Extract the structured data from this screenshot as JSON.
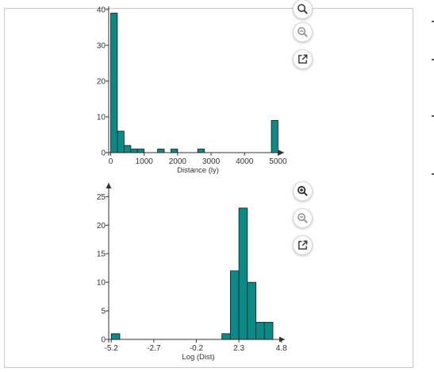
{
  "chart_data": [
    {
      "type": "histogram",
      "xlabel": "Distance (ly)",
      "ylabel": "",
      "xlim": [
        -60,
        5180
      ],
      "ylim": [
        0,
        40
      ],
      "xticks": [
        0,
        1000,
        2000,
        3000,
        4000,
        5000
      ],
      "yticks": [
        0,
        10,
        20,
        30,
        40
      ],
      "bin_width": 200,
      "bins": [
        {
          "x0": 0,
          "x1": 200,
          "count": 39
        },
        {
          "x0": 200,
          "x1": 400,
          "count": 6
        },
        {
          "x0": 400,
          "x1": 600,
          "count": 2
        },
        {
          "x0": 600,
          "x1": 800,
          "count": 1
        },
        {
          "x0": 800,
          "x1": 1000,
          "count": 1
        },
        {
          "x0": 1400,
          "x1": 1600,
          "count": 1
        },
        {
          "x0": 1800,
          "x1": 2000,
          "count": 1
        },
        {
          "x0": 2600,
          "x1": 2800,
          "count": 1
        },
        {
          "x0": 4800,
          "x1": 5000,
          "count": 9
        }
      ],
      "bar_color": "#0a8a87",
      "grid": false
    },
    {
      "type": "histogram",
      "xlabel": "Log (Dist)",
      "ylabel": "",
      "xlim": [
        -5.35,
        5.0
      ],
      "ylim": [
        0,
        27
      ],
      "xticks": [
        -5.2,
        -2.7,
        -0.2,
        2.3,
        4.8
      ],
      "yticks": [
        0,
        5,
        10,
        15,
        20,
        25
      ],
      "bin_width": 0.5,
      "bins": [
        {
          "x0": -5.2,
          "x1": -4.7,
          "count": 1
        },
        {
          "x0": 1.3,
          "x1": 1.8,
          "count": 1
        },
        {
          "x0": 1.8,
          "x1": 2.3,
          "count": 12
        },
        {
          "x0": 2.3,
          "x1": 2.8,
          "count": 23
        },
        {
          "x0": 2.8,
          "x1": 3.3,
          "count": 10
        },
        {
          "x0": 3.3,
          "x1": 3.8,
          "count": 3
        },
        {
          "x0": 3.8,
          "x1": 4.3,
          "count": 3
        }
      ],
      "bar_color": "#0a8a87",
      "grid": false
    }
  ],
  "toolbar": {
    "top": [
      "zoom-in-icon",
      "zoom-out-icon",
      "open-external-icon"
    ],
    "bottom": [
      "zoom-in-icon",
      "zoom-out-icon",
      "open-external-icon"
    ]
  }
}
